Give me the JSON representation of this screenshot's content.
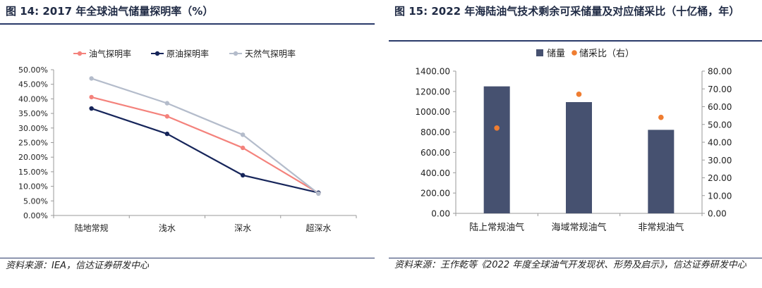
{
  "left": {
    "title": "图 14:  2017 年全球油气储量探明率（%）",
    "source": "资料来源：IEA，信达证券研发中心"
  },
  "right": {
    "title": "图 15:  2022 年海陆油气技术剩余可采储量及对应储采比（十亿桶，年）",
    "source": "资料来源：王作乾等《2022 年度全球油气开发现状、形势及启示》，信达证券研发中心"
  },
  "chart_data": [
    {
      "type": "line",
      "title": "",
      "categories": [
        "陆地常规",
        "浅水",
        "深水",
        "超深水"
      ],
      "series": [
        {
          "name": "油气探明率",
          "color": "#f4827c",
          "values": [
            40.6,
            34.0,
            23.2,
            7.7
          ]
        },
        {
          "name": "原油探明率",
          "color": "#16255a",
          "values": [
            36.7,
            28.0,
            13.8,
            7.8
          ]
        },
        {
          "name": "天然气探明率",
          "color": "#b4bccb",
          "values": [
            47.0,
            38.5,
            27.7,
            7.5
          ]
        }
      ],
      "ylim": [
        0,
        50
      ],
      "yticks": [
        "0.00%",
        "5.00%",
        "10.00%",
        "15.00%",
        "20.00%",
        "25.00%",
        "30.00%",
        "35.00%",
        "40.00%",
        "45.00%",
        "50.00%"
      ],
      "legend": "top",
      "grid": false
    },
    {
      "type": "bar",
      "title": "",
      "categories": [
        "陆上常规油气",
        "海域常规油气",
        "非常规油气"
      ],
      "series": [
        {
          "name": "储量",
          "kind": "bar",
          "axis": "left",
          "color": "#465170",
          "values": [
            1250,
            1095,
            822
          ]
        },
        {
          "name": "储采比（右）",
          "kind": "scatter",
          "axis": "right",
          "color": "#ef7d31",
          "values": [
            48,
            67,
            54
          ]
        }
      ],
      "ylim": [
        0,
        1400
      ],
      "yticks": [
        "0.00",
        "200.00",
        "400.00",
        "600.00",
        "800.00",
        "1000.00",
        "1200.00",
        "1400.00"
      ],
      "y2lim": [
        0,
        80
      ],
      "y2ticks": [
        "0.00",
        "10.00",
        "20.00",
        "30.00",
        "40.00",
        "50.00",
        "60.00",
        "70.00",
        "80.00"
      ],
      "legend": "top",
      "grid": false
    }
  ]
}
